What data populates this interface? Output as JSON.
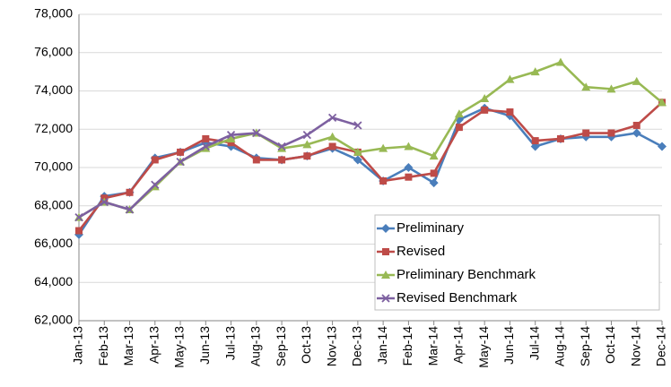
{
  "chart_data": {
    "type": "line",
    "categories": [
      "Jan-13",
      "Feb-13",
      "Mar-13",
      "Apr-13",
      "May-13",
      "Jun-13",
      "Jul-13",
      "Aug-13",
      "Sep-13",
      "Oct-13",
      "Nov-13",
      "Dec-13",
      "Jan-14",
      "Feb-14",
      "Mar-14",
      "Apr-14",
      "May-14",
      "Jun-14",
      "Jul-14",
      "Aug-14",
      "Sep-14",
      "Oct-14",
      "Nov-14",
      "Dec-14"
    ],
    "series": [
      {
        "name": "Preliminary",
        "color": "#4a7ebb",
        "marker": "diamond",
        "values": [
          66500,
          68500,
          68700,
          70500,
          70800,
          71300,
          71100,
          70500,
          70400,
          70600,
          71000,
          70400,
          69300,
          70000,
          69200,
          72500,
          73100,
          72700,
          71100,
          71500,
          71600,
          71600,
          71800,
          71100
        ]
      },
      {
        "name": "Revised",
        "color": "#be4b48",
        "marker": "square",
        "values": [
          66700,
          68400,
          68700,
          70400,
          70800,
          71500,
          71300,
          70400,
          70400,
          70600,
          71100,
          70800,
          69300,
          69500,
          69700,
          72100,
          73000,
          72900,
          71400,
          71500,
          71800,
          71800,
          72200,
          73400
        ]
      },
      {
        "name": "Preliminary Benchmark",
        "color": "#98b954",
        "marker": "triangle",
        "values": [
          67400,
          68200,
          67800,
          69000,
          70300,
          71000,
          71500,
          71800,
          71000,
          71200,
          71600,
          70800,
          71000,
          71100,
          70600,
          72800,
          73600,
          74600,
          75000,
          75500,
          74200,
          74100,
          74500,
          73400
        ]
      },
      {
        "name": "Revised Benchmark",
        "color": "#7d60a0",
        "marker": "x",
        "values": [
          67400,
          68200,
          67800,
          69100,
          70300,
          71100,
          71700,
          71800,
          71100,
          71700,
          72600,
          72200,
          null,
          null,
          null,
          null,
          null,
          null,
          null,
          null,
          null,
          null,
          null,
          null
        ]
      }
    ],
    "ylim": [
      62000,
      78000
    ],
    "yticks": [
      {
        "value": 62000,
        "label": "62,000"
      },
      {
        "value": 64000,
        "label": "64,000"
      },
      {
        "value": 66000,
        "label": "66,000"
      },
      {
        "value": 68000,
        "label": "68,000"
      },
      {
        "value": 70000,
        "label": "70,000"
      },
      {
        "value": 72000,
        "label": "72,000"
      },
      {
        "value": 74000,
        "label": "74,000"
      },
      {
        "value": 76000,
        "label": "76,000"
      },
      {
        "value": 78000,
        "label": "78,000"
      }
    ],
    "grid": true
  }
}
